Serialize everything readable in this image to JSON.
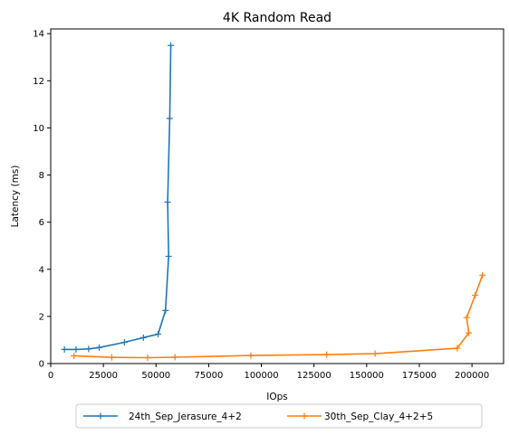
{
  "chart_data": {
    "type": "line",
    "title": "4K  Random Read",
    "xlabel": "IOps",
    "ylabel": "Latency (ms)",
    "xlim": [
      0,
      215000
    ],
    "ylim": [
      0,
      14.2
    ],
    "xticks": [
      0,
      25000,
      50000,
      75000,
      100000,
      125000,
      150000,
      175000,
      200000
    ],
    "yticks": [
      0,
      2,
      4,
      6,
      8,
      10,
      12,
      14
    ],
    "grid": false,
    "legend_position": "bottom-center-outside",
    "series": [
      {
        "name": "24th_Sep_Jerasure_4+2",
        "color": "#1f77b4",
        "marker": "plus",
        "points": [
          [
            6500,
            0.6
          ],
          [
            12000,
            0.6
          ],
          [
            18000,
            0.62
          ],
          [
            23000,
            0.68
          ],
          [
            35000,
            0.9
          ],
          [
            44000,
            1.1
          ],
          [
            51000,
            1.25
          ],
          [
            54500,
            2.25
          ],
          [
            56000,
            4.55
          ],
          [
            55500,
            6.85
          ],
          [
            56500,
            10.4
          ],
          [
            57000,
            13.5
          ]
        ]
      },
      {
        "name": "30th_Sep_Clay_4+2+5",
        "color": "#ff7f0e",
        "marker": "plus",
        "points": [
          [
            11000,
            0.33
          ],
          [
            29000,
            0.26
          ],
          [
            46000,
            0.25
          ],
          [
            59000,
            0.27
          ],
          [
            95000,
            0.34
          ],
          [
            131000,
            0.38
          ],
          [
            154000,
            0.42
          ],
          [
            193000,
            0.65
          ],
          [
            198500,
            1.3
          ],
          [
            197500,
            1.95
          ],
          [
            201500,
            2.9
          ],
          [
            205000,
            3.75
          ]
        ]
      }
    ]
  }
}
